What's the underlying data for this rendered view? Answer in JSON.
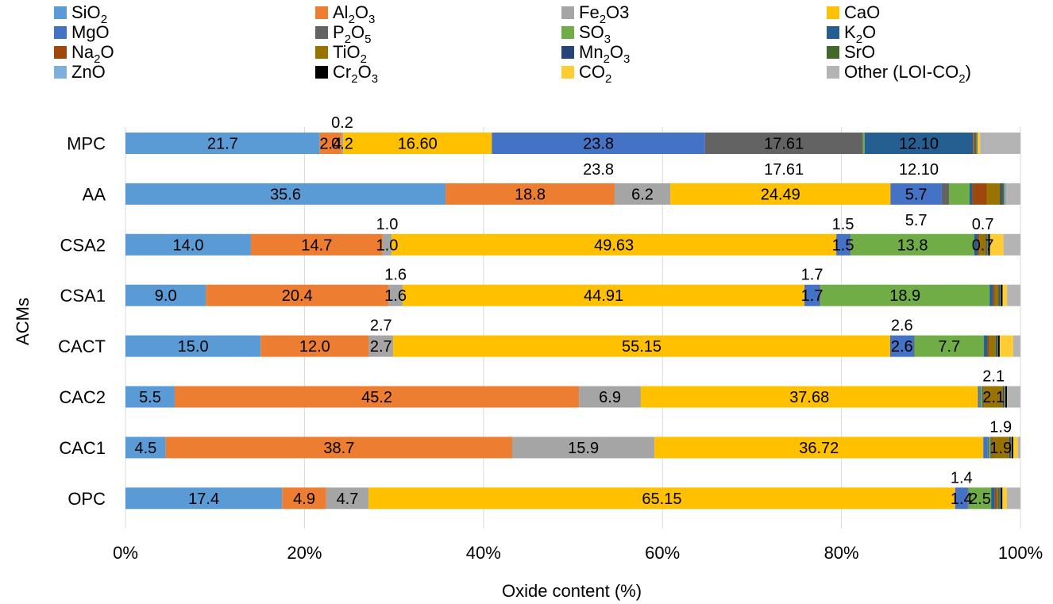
{
  "chart_data": {
    "type": "bar",
    "orientation": "horizontal",
    "stacked": "percent",
    "xlabel": "Oxide content (%)",
    "ylabel": "ACMs",
    "xlim": [
      0,
      100
    ],
    "x_ticks": [
      "0%",
      "20%",
      "40%",
      "60%",
      "80%",
      "100%"
    ],
    "grid": "vertical",
    "legend_position": "top",
    "categories": [
      "OPC",
      "CAC1",
      "CAC2",
      "CACT",
      "CSA1",
      "CSA2",
      "AA",
      "MPC"
    ],
    "series": [
      {
        "name": "SiO2",
        "legend_parts": [
          [
            "SiO",
            ""
          ],
          [
            "2",
            "sub"
          ]
        ],
        "color": "#5b9bd5",
        "values": [
          17.4,
          4.5,
          5.5,
          15.0,
          9.0,
          14.0,
          35.6,
          21.7
        ],
        "labels": [
          "17.4",
          "4.5",
          "5.5",
          "15.0",
          "9.0",
          "14.0",
          "35.6",
          "21.7"
        ]
      },
      {
        "name": "Al2O3",
        "legend_parts": [
          [
            "Al",
            ""
          ],
          [
            "2",
            "sub"
          ],
          [
            "O",
            ""
          ],
          [
            "3",
            "sub"
          ]
        ],
        "color": "#ed7d31",
        "values": [
          4.9,
          38.7,
          45.2,
          12.0,
          20.4,
          14.7,
          18.8,
          2.4
        ],
        "labels": [
          "4.9",
          "38.7",
          "45.2",
          "12.0",
          "20.4",
          "14.7",
          "18.8",
          "2.4"
        ]
      },
      {
        "name": "Fe2O3",
        "legend_parts": [
          [
            "Fe",
            ""
          ],
          [
            "2",
            "sub"
          ],
          [
            "O3",
            ""
          ]
        ],
        "color": "#a5a5a5",
        "values": [
          4.7,
          15.9,
          6.9,
          2.7,
          1.6,
          1.0,
          6.2,
          0.2
        ],
        "labels": [
          "4.7",
          "15.9",
          "6.9",
          "2.7",
          "1.6",
          "1.0",
          "6.2",
          "0.2"
        ]
      },
      {
        "name": "CaO",
        "legend_parts": [
          [
            "CaO",
            ""
          ]
        ],
        "color": "#ffc000",
        "values": [
          65.15,
          36.72,
          37.68,
          55.15,
          44.91,
          49.63,
          24.49,
          16.6
        ],
        "labels": [
          "65.15",
          "36.72",
          "37.68",
          "55.15",
          "44.91",
          "49.63",
          "24.49",
          "16.60"
        ]
      },
      {
        "name": "MgO",
        "legend_parts": [
          [
            "MgO",
            ""
          ]
        ],
        "color": "#4472c4",
        "values": [
          1.4,
          0.5,
          0.2,
          2.6,
          1.7,
          1.5,
          5.7,
          23.8
        ],
        "labels": [
          "1.4",
          "",
          "",
          "2.6",
          "1.7",
          "1.5",
          "5.7",
          "23.8"
        ]
      },
      {
        "name": "P2O5",
        "legend_parts": [
          [
            "P",
            ""
          ],
          [
            "2",
            "sub"
          ],
          [
            "O",
            ""
          ],
          [
            "5",
            "sub"
          ]
        ],
        "color": "#636363",
        "values": [
          0.1,
          0.1,
          0.1,
          0.1,
          0.1,
          0.1,
          0.8,
          17.61
        ],
        "labels": [
          "",
          "",
          "",
          "",
          "",
          "",
          "",
          "17.61"
        ]
      },
      {
        "name": "SO3",
        "legend_parts": [
          [
            "SO",
            ""
          ],
          [
            "3",
            "sub"
          ]
        ],
        "color": "#70ad47",
        "values": [
          2.5,
          0.2,
          0.2,
          7.7,
          18.9,
          13.8,
          2.3,
          0.2
        ],
        "labels": [
          "2.5",
          "",
          "",
          "7.7",
          "18.9",
          "13.8",
          "",
          ""
        ]
      },
      {
        "name": "K2O",
        "legend_parts": [
          [
            "K",
            ""
          ],
          [
            "2",
            "sub"
          ],
          [
            "O",
            ""
          ]
        ],
        "color": "#255e91",
        "values": [
          0.4,
          0.1,
          0.1,
          0.4,
          0.4,
          0.4,
          0.3,
          12.1
        ],
        "labels": [
          "",
          "",
          "",
          "",
          "",
          "",
          "",
          "12.10"
        ]
      },
      {
        "name": "Na2O",
        "legend_parts": [
          [
            "Na",
            ""
          ],
          [
            "2",
            "sub"
          ],
          [
            "O",
            ""
          ]
        ],
        "color": "#9e480e",
        "values": [
          0.2,
          0.1,
          0.1,
          0.2,
          0.2,
          0.2,
          1.6,
          0.1
        ],
        "labels": [
          "",
          "",
          "",
          "",
          "",
          "",
          "",
          ""
        ]
      },
      {
        "name": "TiO2",
        "legend_parts": [
          [
            "TiO",
            ""
          ],
          [
            "2",
            "sub"
          ]
        ],
        "color": "#997300",
        "values": [
          0.2,
          1.9,
          2.1,
          0.7,
          0.4,
          0.7,
          1.5,
          0.1
        ],
        "labels": [
          "",
          "1.9",
          "2.1",
          "",
          "",
          "0.7",
          "",
          ""
        ]
      },
      {
        "name": "Mn2O3",
        "legend_parts": [
          [
            "Mn",
            ""
          ],
          [
            "2",
            "sub"
          ],
          [
            "O",
            ""
          ],
          [
            "3",
            "sub"
          ]
        ],
        "color": "#264478",
        "values": [
          0.1,
          0.1,
          0.1,
          0.1,
          0.1,
          0.1,
          0.2,
          0.1
        ],
        "labels": [
          "",
          "",
          "",
          "",
          "",
          "",
          "",
          ""
        ]
      },
      {
        "name": "SrO",
        "legend_parts": [
          [
            "SrO",
            ""
          ]
        ],
        "color": "#43682b",
        "values": [
          0.1,
          0.1,
          0.1,
          0.1,
          0.1,
          0.1,
          0.2,
          0.1
        ],
        "labels": [
          "",
          "",
          "",
          "",
          "",
          "",
          "",
          ""
        ]
      },
      {
        "name": "ZnO",
        "legend_parts": [
          [
            "ZnO",
            ""
          ]
        ],
        "color": "#7cafdd",
        "values": [
          0.05,
          0.05,
          0.05,
          0.05,
          0.05,
          0.05,
          0.1,
          0.05
        ],
        "labels": [
          "",
          "",
          "",
          "",
          "",
          "",
          "",
          ""
        ]
      },
      {
        "name": "Cr2O3",
        "legend_parts": [
          [
            "Cr",
            ""
          ],
          [
            "2",
            "sub"
          ],
          [
            "O",
            ""
          ],
          [
            "3",
            "sub"
          ]
        ],
        "color": "#000000",
        "values": [
          0.2,
          0.2,
          0.2,
          0.2,
          0.2,
          0.2,
          0.05,
          0.05
        ],
        "labels": [
          "",
          "",
          "",
          "",
          "",
          "",
          "",
          ""
        ]
      },
      {
        "name": "CO2",
        "legend_parts": [
          [
            "CO",
            ""
          ],
          [
            "2",
            "sub"
          ]
        ],
        "color": "#ffcd33",
        "values": [
          0.5,
          0.5,
          0.0,
          1.5,
          0.5,
          1.5,
          0.0,
          0.3
        ],
        "labels": [
          "",
          "",
          "",
          "",
          "",
          "",
          "",
          ""
        ]
      },
      {
        "name": "Other (LOI-CO2)",
        "legend_parts": [
          [
            "Other (LOI-CO",
            ""
          ],
          [
            "2",
            "sub"
          ],
          [
            ")",
            ""
          ]
        ],
        "color": "#b4b4b4",
        "values": [
          1.5,
          0.3,
          1.5,
          0.8,
          1.5,
          1.9,
          1.7,
          4.5
        ],
        "labels": [
          "",
          "",
          "",
          "",
          "",
          "",
          "",
          ""
        ]
      }
    ],
    "callouts": [
      {
        "category": "MPC",
        "series": "Fe2O3",
        "text": "0.2",
        "position": "above"
      },
      {
        "category": "MPC",
        "series": "MgO",
        "text": "23.8",
        "position": "below"
      },
      {
        "category": "MPC",
        "series": "P2O5",
        "text": "17.61",
        "position": "below"
      },
      {
        "category": "MPC",
        "series": "K2O",
        "text": "12.10",
        "position": "below"
      },
      {
        "category": "AA",
        "series": "MgO",
        "text": "5.7",
        "position": "below"
      },
      {
        "category": "CSA2",
        "series": "Fe2O3",
        "text": "1.0",
        "position": "above"
      },
      {
        "category": "CSA2",
        "series": "MgO",
        "text": "1.5",
        "position": "above"
      },
      {
        "category": "CSA2",
        "series": "TiO2",
        "text": "0.7",
        "position": "above"
      },
      {
        "category": "CSA1",
        "series": "Fe2O3",
        "text": "1.6",
        "position": "above"
      },
      {
        "category": "CSA1",
        "series": "MgO",
        "text": "1.7",
        "position": "above"
      },
      {
        "category": "CACT",
        "series": "Fe2O3",
        "text": "2.7",
        "position": "above"
      },
      {
        "category": "CACT",
        "series": "MgO",
        "text": "2.6",
        "position": "above"
      },
      {
        "category": "CAC2",
        "series": "TiO2",
        "text": "2.1",
        "position": "above"
      },
      {
        "category": "CAC1",
        "series": "TiO2",
        "text": "1.9",
        "position": "above"
      },
      {
        "category": "OPC",
        "series": "MgO",
        "text": "1.4",
        "position": "above"
      }
    ]
  }
}
